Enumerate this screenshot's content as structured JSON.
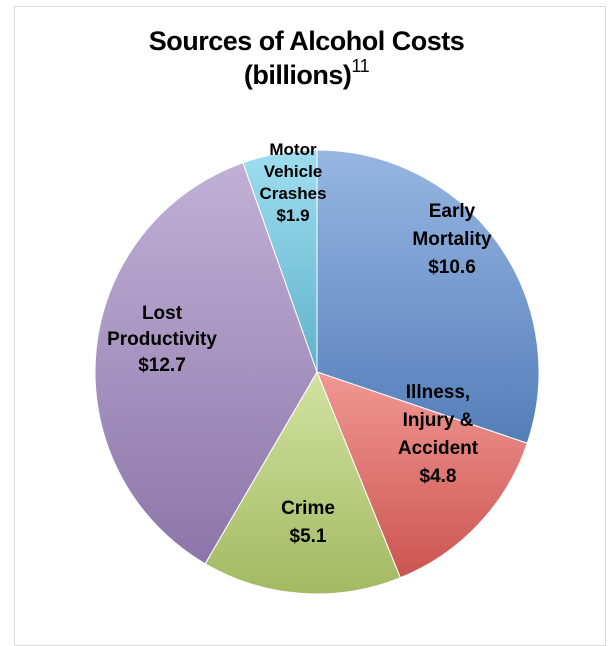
{
  "chart_data": {
    "type": "pie",
    "title": "Sources of Alcohol Costs",
    "subtitle": "(billions)",
    "footnote_marker": "11",
    "unit": "billions",
    "slices": [
      {
        "name": "Early Mortality",
        "value": 10.6,
        "value_label": "$10.6",
        "color": "#5f8fd2",
        "label_lines": [
          "Early",
          "Mortality",
          "$10.6"
        ]
      },
      {
        "name": "Illness, Injury & Accident",
        "value": 4.8,
        "value_label": "$4.8",
        "color": "#e8605b",
        "label_lines": [
          "Illness,",
          "Injury &",
          "Accident",
          "$4.8"
        ]
      },
      {
        "name": "Crime",
        "value": 5.1,
        "value_label": "$5.1",
        "color": "#b9d26e",
        "label_lines": [
          "Crime",
          "$5.1"
        ]
      },
      {
        "name": "Lost Productivity",
        "value": 12.7,
        "value_label": "$12.7",
        "color": "#9f86c0",
        "label_lines": [
          "Lost",
          "Productivity",
          "$12.7"
        ]
      },
      {
        "name": "Motor Vehicle Crashes",
        "value": 1.9,
        "value_label": "$1.9",
        "color": "#6ccbe6",
        "label_lines": [
          "Motor",
          "Vehicle",
          "Crashes",
          "$1.9"
        ]
      }
    ],
    "start_angle": "12 o'clock",
    "direction": "clockwise",
    "legend": "none"
  }
}
